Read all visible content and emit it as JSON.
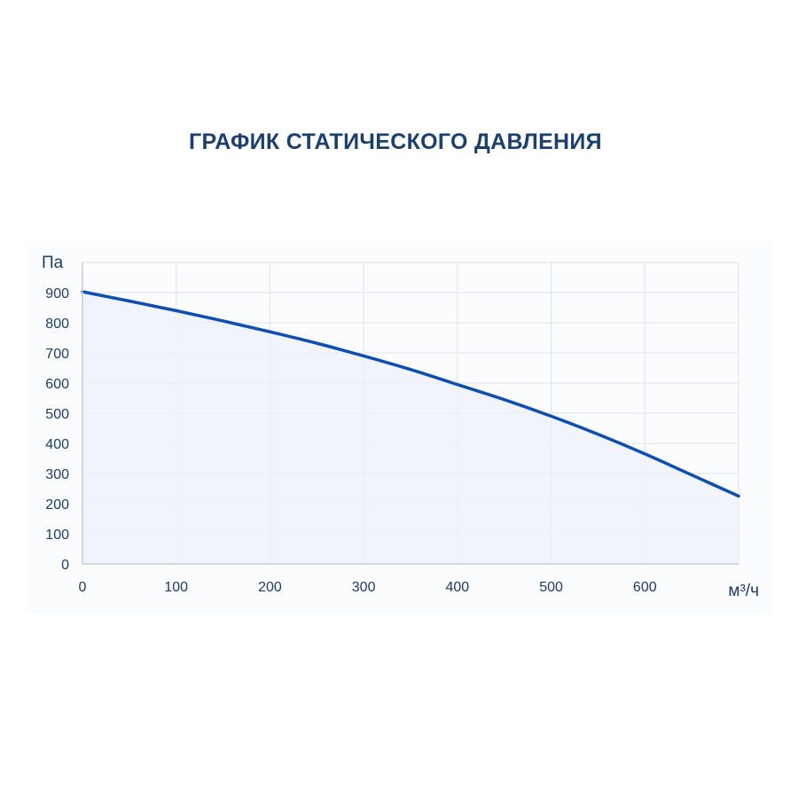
{
  "title": "ГРАФИК СТАТИЧЕСКОГО ДАВЛЕНИЯ",
  "chart_data": {
    "type": "area",
    "title": "ГРАФИК СТАТИЧЕСКОГО ДАВЛЕНИЯ",
    "xlabel": "м³/ч",
    "ylabel": "Па",
    "xlim": [
      0,
      700
    ],
    "ylim": [
      0,
      1000
    ],
    "x_ticks": [
      0,
      100,
      200,
      300,
      400,
      500,
      600
    ],
    "y_ticks": [
      0,
      100,
      200,
      300,
      400,
      500,
      600,
      700,
      800,
      900
    ],
    "grid": true,
    "series": [
      {
        "x": [
          0,
          50,
          100,
          150,
          200,
          250,
          300,
          350,
          400,
          450,
          500,
          550,
          600,
          650,
          700
        ],
        "y": [
          903,
          872,
          840,
          806,
          770,
          732,
          690,
          645,
          595,
          545,
          490,
          430,
          365,
          295,
          225
        ]
      }
    ],
    "colors": {
      "line": "#0d4eb0",
      "fill": "#eef3fa",
      "grid": "#dde3ec",
      "axis": "#c4ccd8",
      "text": "#1f3c66"
    }
  }
}
